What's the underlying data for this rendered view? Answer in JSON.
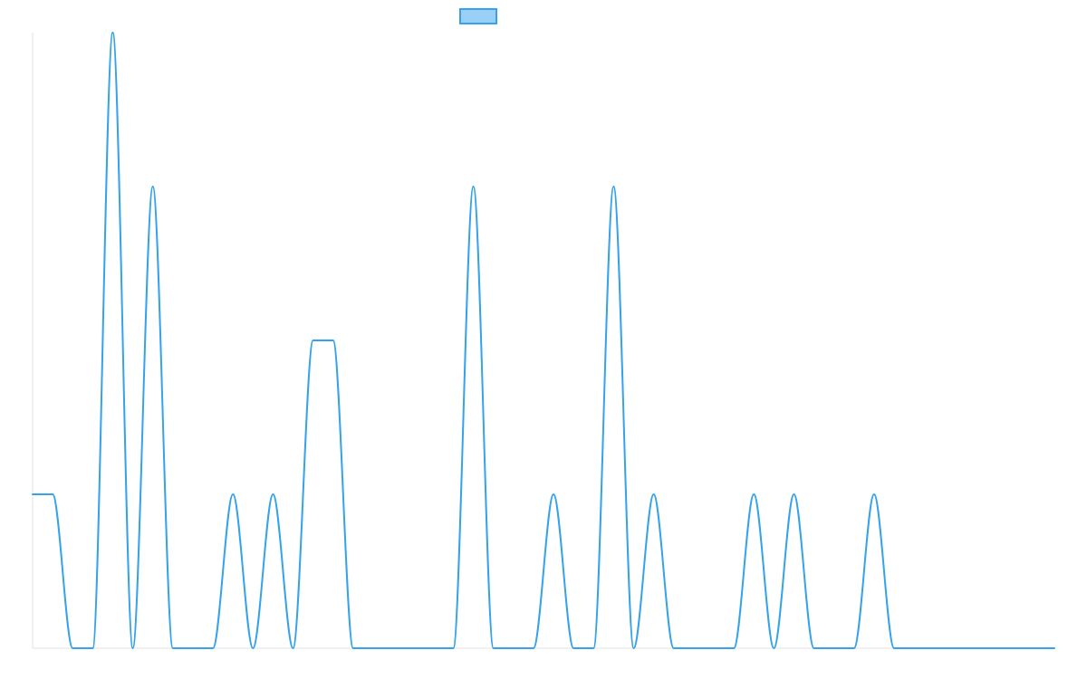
{
  "chart_data": {
    "type": "line",
    "title": "",
    "xlabel": "",
    "ylabel": "",
    "x_tick_labels_shown": false,
    "y_tick_labels_shown": false,
    "grid": false,
    "legend_placement": "top-center",
    "line_shape": "smooth",
    "x": [
      0,
      1,
      2,
      3,
      4,
      5,
      6,
      7,
      8,
      9,
      10,
      11,
      12,
      13,
      14,
      15,
      16,
      17,
      18,
      19,
      20,
      21,
      22,
      23,
      24,
      25,
      26,
      27,
      28,
      29,
      30,
      31,
      32,
      33,
      34,
      35,
      36,
      37,
      38,
      39,
      40,
      41,
      42,
      43,
      44,
      45,
      46,
      47,
      48,
      49,
      50,
      51
    ],
    "xlim": [
      0,
      51
    ],
    "ylim": [
      0,
      4
    ],
    "series": [
      {
        "name": "",
        "color": "#36a2eb",
        "fill_color": "#9ad0f5",
        "values": [
          1,
          1,
          0,
          0,
          4,
          0,
          3,
          0,
          0,
          0,
          1,
          0,
          1,
          0,
          2,
          2,
          0,
          0,
          0,
          0,
          0,
          0,
          3,
          0,
          0,
          0,
          1,
          0,
          0,
          3,
          0,
          1,
          0,
          0,
          0,
          0,
          1,
          0,
          1,
          0,
          0,
          0,
          1,
          0,
          0,
          0,
          0,
          0,
          0,
          0,
          0,
          0
        ]
      }
    ]
  }
}
